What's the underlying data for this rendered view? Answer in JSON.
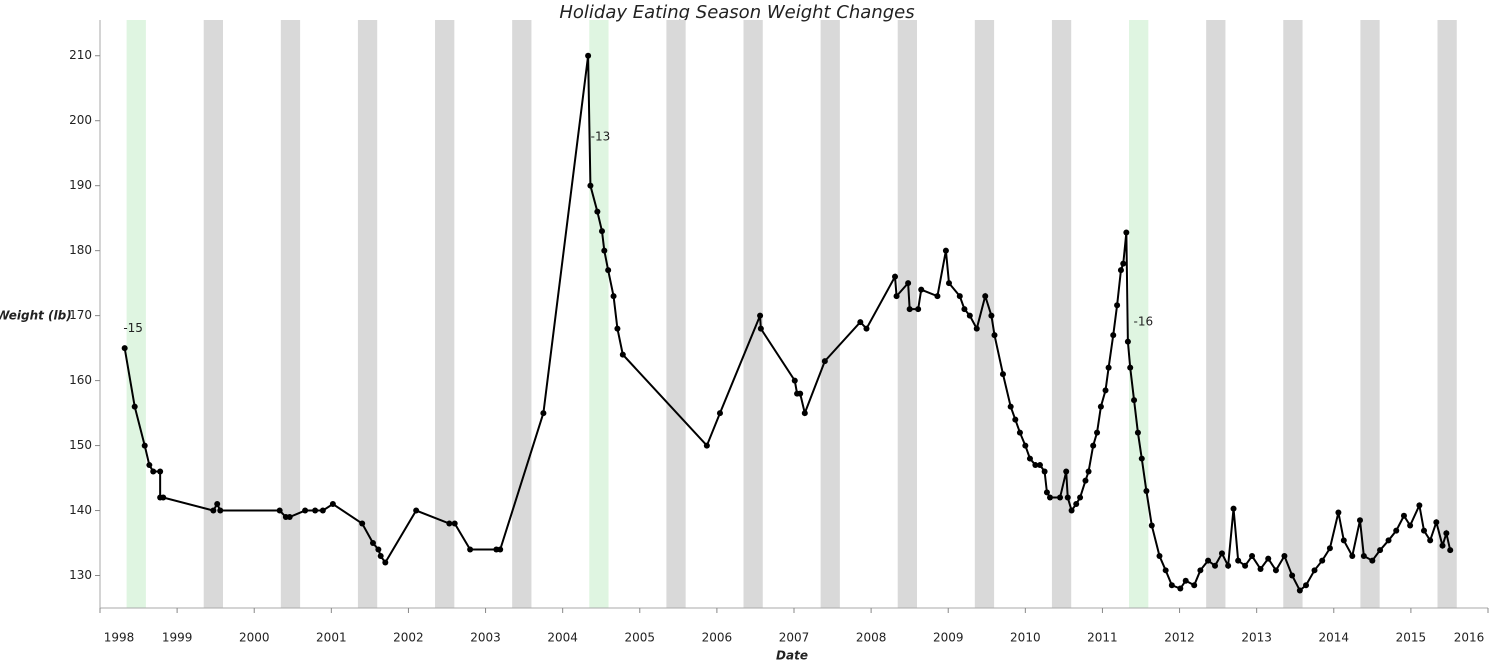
{
  "chart_data": {
    "type": "line",
    "title": "Holiday Eating Season Weight Changes",
    "x_label": "Date",
    "y_label": "Weight (lb)",
    "x": [
      1998.32,
      1998.45,
      1998.58,
      1998.64,
      1998.69,
      1998.78,
      1998.78,
      1998.82,
      1999.47,
      1999.52,
      1999.56,
      2000.33,
      2000.41,
      2000.46,
      2000.66,
      2000.79,
      2000.89,
      2001.02,
      2001.4,
      2001.54,
      2001.61,
      2001.64,
      2001.7,
      2002.1,
      2002.53,
      2002.6,
      2002.8,
      2003.14,
      2003.19,
      2003.75,
      2004.33,
      2004.36,
      2004.45,
      2004.51,
      2004.54,
      2004.59,
      2004.66,
      2004.71,
      2004.78,
      2005.87,
      2006.04,
      2006.56,
      2006.57,
      2007.01,
      2007.04,
      2007.08,
      2007.14,
      2007.4,
      2007.86,
      2007.94,
      2008.31,
      2008.33,
      2008.48,
      2008.5,
      2008.61,
      2008.65,
      2008.86,
      2008.97,
      2009.01,
      2009.15,
      2009.21,
      2009.28,
      2009.37,
      2009.48,
      2009.56,
      2009.6,
      2009.71,
      2009.81,
      2009.87,
      2009.93,
      2010.0,
      2010.06,
      2010.13,
      2010.19,
      2010.25,
      2010.28,
      2010.32,
      2010.45,
      2010.53,
      2010.55,
      2010.6,
      2010.66,
      2010.71,
      2010.78,
      2010.82,
      2010.88,
      2010.93,
      2010.98,
      2011.04,
      2011.08,
      2011.14,
      2011.19,
      2011.24,
      2011.27,
      2011.31,
      2011.33,
      2011.36,
      2011.41,
      2011.46,
      2011.51,
      2011.57,
      2011.64,
      2011.74,
      2011.82,
      2011.9,
      2012.01,
      2012.08,
      2012.19,
      2012.27,
      2012.37,
      2012.46,
      2012.55,
      2012.63,
      2012.7,
      2012.76,
      2012.85,
      2012.94,
      2013.05,
      2013.15,
      2013.25,
      2013.36,
      2013.46,
      2013.56,
      2013.64,
      2013.75,
      2013.85,
      2013.95,
      2014.06,
      2014.13,
      2014.24,
      2014.34,
      2014.39,
      2014.5,
      2014.6,
      2014.71,
      2014.81,
      2014.91,
      2014.99,
      2015.11,
      2015.17,
      2015.25,
      2015.33,
      2015.41,
      2015.46,
      2015.51
    ],
    "series": [
      {
        "name": "Weight",
        "color": "#000000",
        "values": [
          165,
          156,
          150,
          147,
          146,
          146,
          142,
          142,
          140,
          141,
          140,
          140,
          139,
          139,
          140,
          140,
          140,
          141,
          138,
          135,
          134,
          133,
          132,
          140,
          138,
          138,
          134,
          134,
          134,
          155,
          210,
          190,
          186,
          183,
          180,
          177,
          173,
          168,
          164,
          150,
          155,
          170,
          168,
          160,
          158,
          158,
          155,
          163,
          169,
          168,
          176,
          173,
          175,
          171,
          171,
          174,
          173,
          180,
          175,
          173,
          171,
          170,
          168,
          173,
          170,
          167,
          161,
          156,
          154,
          152,
          150,
          148,
          147,
          147,
          146,
          142.8,
          142,
          142,
          146,
          142,
          140,
          141,
          142,
          144.6,
          146,
          150,
          152,
          156,
          158.5,
          162,
          167,
          171.6,
          177,
          178,
          182.8,
          166,
          162,
          157,
          152,
          148,
          143,
          137.7,
          133,
          130.8,
          128.5,
          128,
          129.2,
          128.5,
          130.8,
          132.3,
          131.5,
          133.4,
          131.5,
          140.3,
          132.3,
          131.5,
          133,
          131,
          132.6,
          130.8,
          133,
          130,
          127.7,
          128.5,
          130.8,
          132.3,
          134.2,
          139.7,
          135.4,
          133,
          138.5,
          133,
          132.3,
          133.9,
          135.4,
          136.9,
          139.2,
          137.7,
          140.8,
          136.9,
          135.4,
          138.2,
          134.6,
          136.5,
          133.9
        ]
      }
    ],
    "shaded_periods": [
      {
        "start": 1998.345,
        "end": 1998.595,
        "color": "#dff5e1"
      },
      {
        "start": 1999.345,
        "end": 1999.595,
        "color": "#d9d9d9"
      },
      {
        "start": 2000.345,
        "end": 2000.595,
        "color": "#d9d9d9"
      },
      {
        "start": 2001.345,
        "end": 2001.595,
        "color": "#d9d9d9"
      },
      {
        "start": 2002.345,
        "end": 2002.595,
        "color": "#d9d9d9"
      },
      {
        "start": 2003.345,
        "end": 2003.595,
        "color": "#d9d9d9"
      },
      {
        "start": 2004.345,
        "end": 2004.595,
        "color": "#dff5e1"
      },
      {
        "start": 2005.345,
        "end": 2005.595,
        "color": "#d9d9d9"
      },
      {
        "start": 2006.345,
        "end": 2006.595,
        "color": "#d9d9d9"
      },
      {
        "start": 2007.345,
        "end": 2007.595,
        "color": "#d9d9d9"
      },
      {
        "start": 2008.345,
        "end": 2008.595,
        "color": "#d9d9d9"
      },
      {
        "start": 2009.345,
        "end": 2009.595,
        "color": "#d9d9d9"
      },
      {
        "start": 2010.345,
        "end": 2010.595,
        "color": "#d9d9d9"
      },
      {
        "start": 2011.345,
        "end": 2011.595,
        "color": "#dff5e1"
      },
      {
        "start": 2012.345,
        "end": 2012.595,
        "color": "#d9d9d9"
      },
      {
        "start": 2013.345,
        "end": 2013.595,
        "color": "#d9d9d9"
      },
      {
        "start": 2014.345,
        "end": 2014.595,
        "color": "#d9d9d9"
      },
      {
        "start": 2015.345,
        "end": 2015.595,
        "color": "#d9d9d9"
      }
    ],
    "annotations": [
      {
        "text": "-15",
        "x": 1998.43,
        "y": 168
      },
      {
        "text": "-13",
        "x": 2004.49,
        "y": 197.5
      },
      {
        "text": "-16",
        "x": 2011.53,
        "y": 169
      }
    ],
    "xlim": [
      1998,
      2016
    ],
    "xticks": [
      1998,
      1999,
      2000,
      2001,
      2002,
      2003,
      2004,
      2005,
      2006,
      2007,
      2008,
      2009,
      2010,
      2011,
      2012,
      2013,
      2014,
      2015,
      2016
    ],
    "ylim": [
      125,
      215.5
    ],
    "yticks": [
      130,
      140,
      150,
      160,
      170,
      180,
      190,
      200,
      210
    ],
    "grid": false
  }
}
